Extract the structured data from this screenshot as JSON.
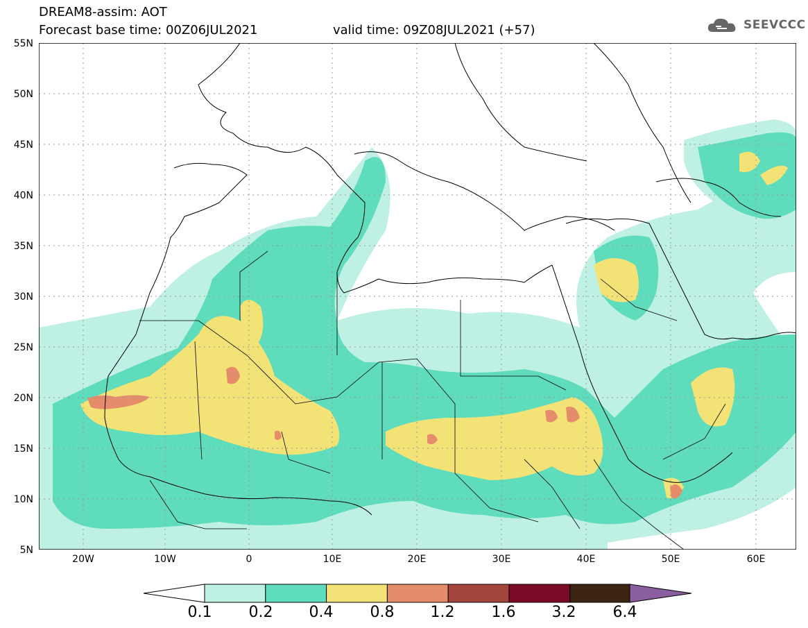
{
  "header": {
    "line1": "DREAM8-assim: AOT",
    "line2": "Forecast base time: 00Z06JUL2021",
    "valid": "valid time: 09Z08JUL2021 (+57)"
  },
  "logo": {
    "text": "SEEVCCC",
    "icon": "cloud-icon"
  },
  "map": {
    "lat_labels": [
      "55N",
      "50N",
      "45N",
      "40N",
      "35N",
      "30N",
      "25N",
      "20N",
      "15N",
      "10N",
      "5N"
    ],
    "lon_labels": [
      "20W",
      "10W",
      "0",
      "10E",
      "20E",
      "30E",
      "40E",
      "50E",
      "60E"
    ]
  },
  "colorbar": {
    "labels": [
      "0.1",
      "0.2",
      "0.4",
      "0.8",
      "1.2",
      "1.6",
      "3.2",
      "6.4"
    ],
    "colors": [
      "#ffffff",
      "#bff0e4",
      "#5fdcbc",
      "#f3e377",
      "#e58c6a",
      "#a5463d",
      "#7c0b28",
      "#3b2411",
      "#8a5fa0"
    ]
  }
}
